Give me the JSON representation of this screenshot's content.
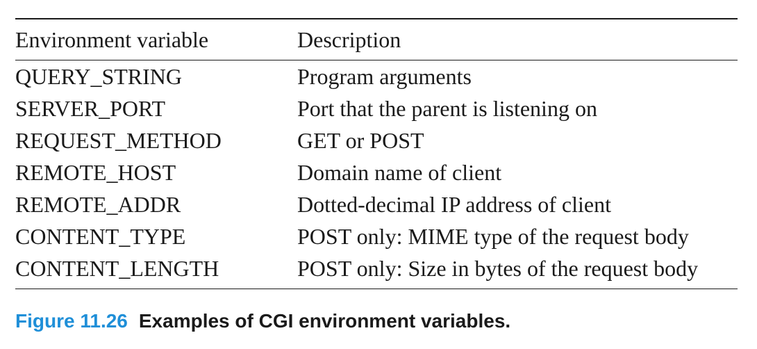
{
  "table": {
    "headers": [
      "Environment variable",
      "Description"
    ],
    "rows": [
      [
        "QUERY_STRING",
        "Program arguments"
      ],
      [
        "SERVER_PORT",
        "Port that the parent is listening on"
      ],
      [
        "REQUEST_METHOD",
        "GET or POST"
      ],
      [
        "REMOTE_HOST",
        "Domain name of client"
      ],
      [
        "REMOTE_ADDR",
        "Dotted-decimal IP address of client"
      ],
      [
        "CONTENT_TYPE",
        "POST only: MIME type of the request body"
      ],
      [
        "CONTENT_LENGTH",
        "POST only: Size in bytes of the request body"
      ]
    ]
  },
  "caption": {
    "figure_number": "Figure 11.26",
    "text": "Examples of CGI environment variables."
  },
  "colors": {
    "text": "#1a1a1a",
    "figure_number": "#1f8fd8"
  }
}
